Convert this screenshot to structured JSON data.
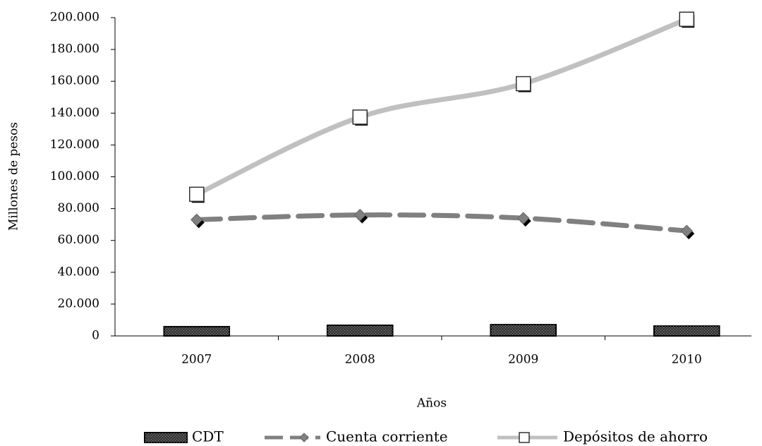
{
  "chart_data": {
    "type": "line",
    "categories": [
      "2007",
      "2008",
      "2009",
      "2010"
    ],
    "series": [
      {
        "name": "CDT",
        "type": "bar",
        "color": "#3a3a3a",
        "values": [
          5800,
          6700,
          7100,
          6200
        ]
      },
      {
        "name": "Cuenta corriente",
        "type": "line",
        "style": "dashed",
        "marker": "diamond",
        "color": "#808080",
        "values": [
          73000,
          76000,
          74000,
          66000
        ]
      },
      {
        "name": "Depósitos de ahorro",
        "type": "line",
        "style": "smooth",
        "marker": "square",
        "color": "#c0c0c0",
        "values": [
          89000,
          137500,
          158500,
          199000
        ]
      }
    ],
    "x_label": "Años",
    "y_label": "Millones de pesos",
    "ylim": [
      0,
      200000
    ],
    "yticks": [
      0,
      {
        "value": 20000,
        "label": "20.000"
      },
      {
        "value": 40000,
        "label": "40.000"
      },
      {
        "value": 60000,
        "label": "60.000"
      },
      {
        "value": 80000,
        "label": "80.000"
      },
      {
        "value": 100000,
        "label": "100.000"
      },
      {
        "value": 120000,
        "label": "120.000"
      },
      {
        "value": 140000,
        "label": "140.000"
      },
      {
        "value": 160000,
        "label": "160.000"
      },
      {
        "value": 180000,
        "label": "180.000"
      },
      {
        "value": 200000,
        "label": "200.000"
      }
    ],
    "legend": "bottom"
  }
}
